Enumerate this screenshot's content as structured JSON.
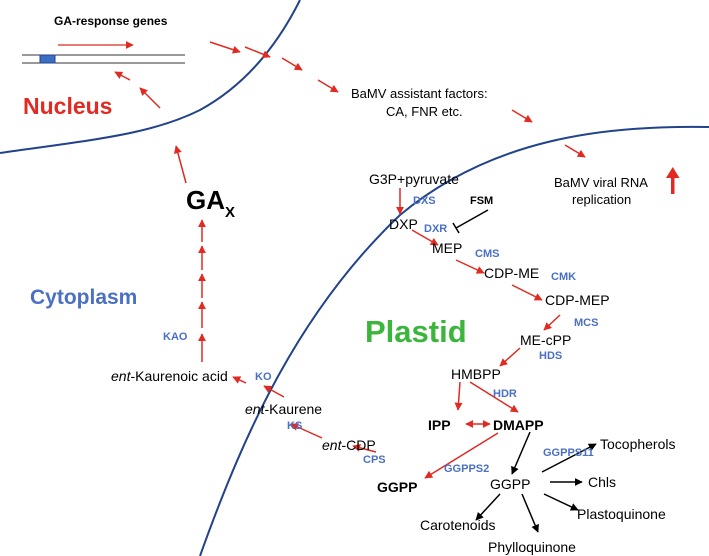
{
  "colors": {
    "membrane": "#22438a",
    "red": "#e02a22",
    "blue": "#4a70c4",
    "green": "#3bb53b",
    "black": "#000000"
  },
  "compartments": {
    "nucleus": "Nucleus",
    "cytoplasm": "Cytoplasm",
    "plastid": "Plastid"
  },
  "gene": {
    "label": "GA-response genes"
  },
  "factors": {
    "line1": "BaMV assistant factors:",
    "line2": "CA, FNR etc."
  },
  "replication": {
    "line1": "BaMV viral RNA",
    "line2": "replication",
    "arrow": "↑"
  },
  "ga": {
    "main": "GA",
    "sub": "X"
  },
  "metabolites": {
    "g3p": "G3P+pyruvate",
    "dxp": "DXP",
    "fsm": "FSM",
    "mep": "MEP",
    "cdpme": "CDP-ME",
    "cdpmep": "CDP-MEP",
    "mecpp": "ME-cPP",
    "hmbpp": "HMBPP",
    "ipp": "IPP",
    "dmapp": "DMAPP",
    "ggpp_plastid": "GGPP",
    "ggpp_left": "GGPP",
    "tocopherols": "Tocopherols",
    "chls": "Chls",
    "plastoquinone": "Plastoquinone",
    "carotenoids": "Carotenoids",
    "phylloquinone": "Phylloquinone"
  },
  "ent": {
    "cdp_prefix": "ent",
    "cdp_rest": "-CDP",
    "kaurene_prefix": "ent",
    "kaurene_rest": "-Kaurene",
    "acid_prefix": "ent",
    "acid_rest": "-Kaurenoic acid"
  },
  "enzymes": {
    "dxs": "DXS",
    "dxr": "DXR",
    "cms": "CMS",
    "cmk": "CMK",
    "mcs": "MCS",
    "hds": "HDS",
    "hdr": "HDR",
    "ggpps11": "GGPPS11",
    "ggpps2": "GGPPS2",
    "cps": "CPS",
    "ks": "KS",
    "ko": "KO",
    "kao": "KAO"
  }
}
